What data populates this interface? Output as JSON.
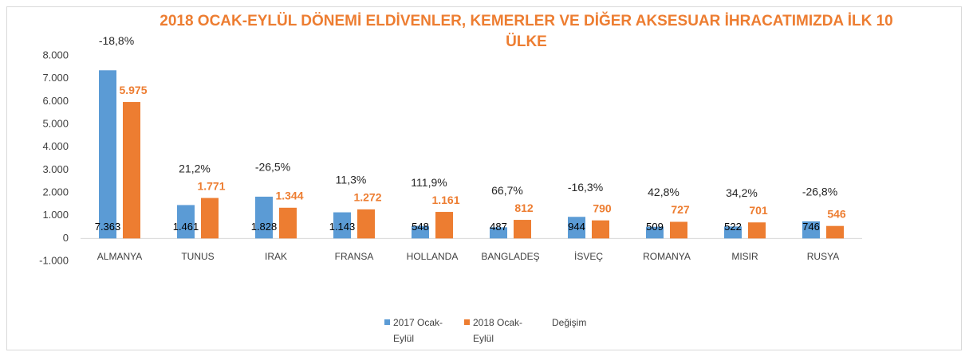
{
  "chart_data": {
    "type": "bar",
    "title": "2018 OCAK-EYLÜL DÖNEMİ ELDİVENLER, KEMERLER VE DİĞER AKSESUAR İHRACATIMIZDA İLK  10 ÜLKE",
    "categories": [
      "ALMANYA",
      "TUNUS",
      "IRAK",
      "FRANSA",
      "HOLLANDA",
      "BANGLADEŞ",
      "İSVEÇ",
      "ROMANYA",
      "MISIR",
      "RUSYA"
    ],
    "series": [
      {
        "name": "2017 Ocak-Eylül",
        "color": "#5B9BD5",
        "values": [
          7363,
          1461,
          1828,
          1143,
          548,
          487,
          944,
          509,
          522,
          746
        ],
        "value_labels": [
          "7.363",
          "1.461",
          "1.828",
          "1.143",
          "548",
          "487",
          "944",
          "509",
          "522",
          "746"
        ]
      },
      {
        "name": "2018 Ocak-Eylül",
        "color": "#ED7D31",
        "values": [
          5975,
          1771,
          1344,
          1272,
          1161,
          812,
          790,
          727,
          701,
          546
        ],
        "value_labels": [
          "5.975",
          "1.771",
          "1.344",
          "1.272",
          "1.161",
          "812",
          "790",
          "727",
          "701",
          "546"
        ]
      },
      {
        "name": "Değişim",
        "values": [
          -18.8,
          21.2,
          -26.5,
          11.3,
          111.9,
          66.7,
          -16.3,
          42.8,
          34.2,
          -26.8
        ],
        "value_labels": [
          "-18,8%",
          "21,2%",
          "-26,5%",
          "11,3%",
          "111,9%",
          "66,7%",
          "-16,3%",
          "42,8%",
          "34,2%",
          "-26,8%"
        ]
      }
    ],
    "ylim": [
      -1000,
      8000
    ],
    "yticks": [
      {
        "value": -1000,
        "label": "-1.000"
      },
      0,
      {
        "value": 1000,
        "label": "1.000"
      },
      {
        "value": 2000,
        "label": "2.000"
      },
      {
        "value": 3000,
        "label": "3.000"
      },
      {
        "value": 4000,
        "label": "4.000"
      },
      {
        "value": 5000,
        "label": "5.000"
      },
      {
        "value": 6000,
        "label": "6.000"
      },
      {
        "value": 7000,
        "label": "7.000"
      },
      {
        "value": 8000,
        "label": "8.000"
      }
    ],
    "grid": false
  }
}
